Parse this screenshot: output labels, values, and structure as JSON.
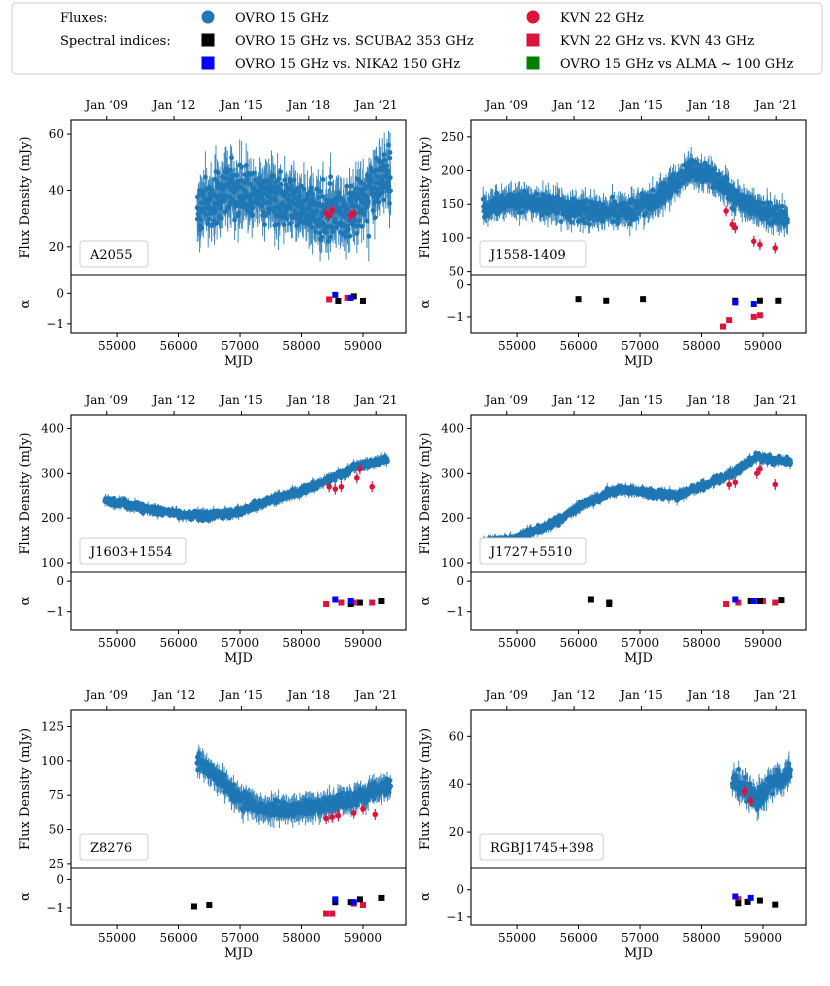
{
  "chart_data": {
    "type": "scatter",
    "x_axis_label": "MJD",
    "y_axis_label_top": "Flux Density (mJy)",
    "y_axis_label_bottom": "α",
    "x_ticks": [
      55000,
      56000,
      57000,
      58000,
      59000
    ],
    "x_tick_labels": [
      "55000",
      "56000",
      "57000",
      "58000",
      "59000"
    ],
    "top_axis_ticks": [
      "Jan ‘09",
      "Jan ‘12",
      "Jan ‘15",
      "Jan ‘18",
      "Jan ‘21"
    ],
    "top_axis_tick_mjd": [
      54832,
      55927,
      57023,
      58119,
      59215
    ],
    "xlim": [
      54250,
      59700
    ],
    "legend": {
      "fluxes_label": "Fluxes:",
      "spectral_label": "Spectral indices:",
      "entries": [
        {
          "name": "OVRO 15 GHz",
          "marker": "circle",
          "color": "#1f77b4"
        },
        {
          "name": "KVN 22 GHz",
          "marker": "circle",
          "color": "#dc143c"
        },
        {
          "name": "OVRO 15 GHz vs. SCUBA2 353 GHz",
          "marker": "square",
          "color": "#000000"
        },
        {
          "name": "KVN 22 GHz vs. KVN 43 GHz",
          "marker": "square",
          "color": "#dc143c"
        },
        {
          "name": "OVRO 15 GHz vs. NIKA2 150 GHz",
          "marker": "square",
          "color": "#0000ff"
        },
        {
          "name": "OVRO 15 GHz vs ALMA ~ 100 GHz",
          "marker": "square",
          "color": "#008000"
        }
      ]
    },
    "panels": [
      {
        "name": "A2055",
        "flux_ylim": [
          10,
          65
        ],
        "flux_ticks": [
          20,
          40,
          60
        ],
        "alpha_ylim": [
          -1.3,
          0.6
        ],
        "alpha_ticks": [
          0,
          -1
        ],
        "ovro_start": 56300,
        "ovro_end": 59450,
        "ovro_scatter": 9,
        "ovro_err": 8,
        "ovro_profile": [
          [
            56300,
            33
          ],
          [
            56800,
            40
          ],
          [
            57400,
            40
          ],
          [
            57800,
            35
          ],
          [
            58300,
            33
          ],
          [
            58800,
            32
          ],
          [
            59100,
            38
          ],
          [
            59450,
            47
          ]
        ],
        "kvn_flux": [
          [
            58400,
            32
          ],
          [
            58450,
            31
          ],
          [
            58500,
            33
          ],
          [
            58800,
            31
          ],
          [
            58850,
            32
          ]
        ],
        "alpha_kvn": [
          [
            58450,
            -0.2
          ],
          [
            58750,
            -0.15
          ]
        ],
        "alpha_scuba": [
          [
            58600,
            -0.25
          ],
          [
            58850,
            -0.1
          ],
          [
            59000,
            -0.25
          ]
        ],
        "alpha_nika": [
          [
            58550,
            -0.05
          ],
          [
            58800,
            -0.15
          ]
        ]
      },
      {
        "name": "J1558-1409",
        "flux_ylim": [
          45,
          275
        ],
        "flux_ticks": [
          50,
          100,
          150,
          200,
          250
        ],
        "alpha_ylim": [
          -1.5,
          0.3
        ],
        "alpha_ticks": [
          0,
          -1
        ],
        "ovro_start": 54450,
        "ovro_end": 59400,
        "ovro_scatter": 14,
        "ovro_err": 18,
        "ovro_profile": [
          [
            54450,
            145
          ],
          [
            55000,
            155
          ],
          [
            55500,
            150
          ],
          [
            56000,
            140
          ],
          [
            56800,
            140
          ],
          [
            57300,
            160
          ],
          [
            57800,
            200
          ],
          [
            58100,
            195
          ],
          [
            58400,
            175
          ],
          [
            58700,
            150
          ],
          [
            59000,
            140
          ],
          [
            59400,
            130
          ]
        ],
        "kvn_flux": [
          [
            58400,
            140
          ],
          [
            58500,
            120
          ],
          [
            58550,
            115
          ],
          [
            58850,
            95
          ],
          [
            58950,
            90
          ],
          [
            59200,
            85
          ]
        ],
        "alpha_kvn": [
          [
            58350,
            -1.3
          ],
          [
            58450,
            -1.1
          ],
          [
            58850,
            -1.0
          ],
          [
            58950,
            -0.95
          ]
        ],
        "alpha_scuba": [
          [
            56000,
            -0.45
          ],
          [
            56450,
            -0.5
          ],
          [
            57050,
            -0.45
          ],
          [
            58550,
            -0.5
          ],
          [
            58950,
            -0.5
          ],
          [
            59250,
            -0.5
          ]
        ],
        "alpha_nika": [
          [
            58550,
            -0.55
          ],
          [
            58850,
            -0.6
          ]
        ]
      },
      {
        "name": "J1603+1554",
        "flux_ylim": [
          80,
          430
        ],
        "flux_ticks": [
          100,
          200,
          300,
          400
        ],
        "alpha_ylim": [
          -1.6,
          0.3
        ],
        "alpha_ticks": [
          0,
          -1
        ],
        "ovro_start": 54800,
        "ovro_end": 59400,
        "ovro_scatter": 8,
        "ovro_err": 10,
        "ovro_profile": [
          [
            54800,
            240
          ],
          [
            55500,
            220
          ],
          [
            56000,
            210
          ],
          [
            56500,
            205
          ],
          [
            57000,
            215
          ],
          [
            57500,
            240
          ],
          [
            58000,
            260
          ],
          [
            58500,
            290
          ],
          [
            59000,
            320
          ],
          [
            59400,
            330
          ]
        ],
        "kvn_flux": [
          [
            58450,
            270
          ],
          [
            58550,
            265
          ],
          [
            58650,
            270
          ],
          [
            58900,
            290
          ],
          [
            58950,
            310
          ],
          [
            59150,
            270
          ]
        ],
        "alpha_kvn": [
          [
            58400,
            -0.75
          ],
          [
            58650,
            -0.7
          ],
          [
            58850,
            -0.7
          ],
          [
            59150,
            -0.7
          ]
        ],
        "alpha_scuba": [
          [
            58800,
            -0.75
          ],
          [
            58950,
            -0.7
          ],
          [
            59300,
            -0.65
          ]
        ],
        "alpha_nika": [
          [
            58550,
            -0.6
          ],
          [
            58800,
            -0.65
          ]
        ]
      },
      {
        "name": "J1727+5510",
        "flux_ylim": [
          80,
          430
        ],
        "flux_ticks": [
          100,
          200,
          300,
          400
        ],
        "alpha_ylim": [
          -1.6,
          0.3
        ],
        "alpha_ticks": [
          0,
          -1
        ],
        "ovro_start": 54450,
        "ovro_end": 59450,
        "ovro_scatter": 8,
        "ovro_err": 10,
        "ovro_profile": [
          [
            54450,
            145
          ],
          [
            55000,
            155
          ],
          [
            55600,
            190
          ],
          [
            56200,
            240
          ],
          [
            56700,
            265
          ],
          [
            57200,
            255
          ],
          [
            57600,
            250
          ],
          [
            58000,
            270
          ],
          [
            58500,
            300
          ],
          [
            58900,
            335
          ],
          [
            59450,
            325
          ]
        ],
        "kvn_flux": [
          [
            58450,
            275
          ],
          [
            58550,
            280
          ],
          [
            58900,
            300
          ],
          [
            58950,
            310
          ],
          [
            59200,
            275
          ]
        ],
        "alpha_kvn": [
          [
            58400,
            -0.75
          ],
          [
            58600,
            -0.7
          ],
          [
            59000,
            -0.65
          ],
          [
            59200,
            -0.7
          ]
        ],
        "alpha_scuba": [
          [
            56200,
            -0.6
          ],
          [
            56500,
            -0.7
          ],
          [
            56500,
            -0.75
          ],
          [
            58800,
            -0.65
          ],
          [
            58950,
            -0.65
          ],
          [
            59300,
            -0.62
          ]
        ],
        "alpha_nika": [
          [
            58550,
            -0.6
          ],
          [
            58850,
            -0.65
          ]
        ]
      },
      {
        "name": "Z8276",
        "flux_ylim": [
          22,
          137
        ],
        "flux_ticks": [
          25,
          50,
          75,
          100,
          125
        ],
        "alpha_ylim": [
          -1.6,
          0.4
        ],
        "alpha_ticks": [
          0,
          -1
        ],
        "ovro_start": 56300,
        "ovro_end": 59450,
        "ovro_scatter": 5,
        "ovro_err": 8,
        "ovro_profile": [
          [
            56300,
            100
          ],
          [
            56600,
            90
          ],
          [
            57000,
            72
          ],
          [
            57400,
            65
          ],
          [
            58000,
            65
          ],
          [
            58400,
            68
          ],
          [
            58800,
            72
          ],
          [
            59200,
            78
          ],
          [
            59450,
            82
          ]
        ],
        "kvn_flux": [
          [
            58400,
            58
          ],
          [
            58500,
            59
          ],
          [
            58600,
            60
          ],
          [
            58850,
            62
          ],
          [
            59000,
            65
          ],
          [
            59200,
            61
          ]
        ],
        "alpha_kvn": [
          [
            58400,
            -1.2
          ],
          [
            58500,
            -1.2
          ],
          [
            58850,
            -0.85
          ],
          [
            59000,
            -0.9
          ]
        ],
        "alpha_scuba": [
          [
            56250,
            -0.95
          ],
          [
            56500,
            -0.9
          ],
          [
            58550,
            -0.8
          ],
          [
            58800,
            -0.8
          ],
          [
            58950,
            -0.7
          ],
          [
            59300,
            -0.65
          ]
        ],
        "alpha_nika": [
          [
            58550,
            -0.7
          ],
          [
            58850,
            -0.8
          ]
        ]
      },
      {
        "name": "RGBJ1745+398",
        "flux_ylim": [
          5,
          71
        ],
        "flux_ticks": [
          20,
          40,
          60
        ],
        "alpha_ylim": [
          -1.3,
          0.8
        ],
        "alpha_ticks": [
          0,
          -1
        ],
        "ovro_start": 58500,
        "ovro_end": 59450,
        "ovro_scatter": 4,
        "ovro_err": 5,
        "ovro_profile": [
          [
            58500,
            42
          ],
          [
            58700,
            38
          ],
          [
            58900,
            33
          ],
          [
            59100,
            40
          ],
          [
            59300,
            42
          ],
          [
            59450,
            46
          ]
        ],
        "kvn_flux": [
          [
            58700,
            37
          ],
          [
            58800,
            33
          ]
        ],
        "alpha_kvn": [
          [
            58600,
            -0.35
          ]
        ],
        "alpha_scuba": [
          [
            58600,
            -0.5
          ],
          [
            58750,
            -0.45
          ],
          [
            58950,
            -0.4
          ],
          [
            59200,
            -0.55
          ]
        ],
        "alpha_nika": [
          [
            58550,
            -0.25
          ],
          [
            58800,
            -0.3
          ]
        ]
      }
    ]
  }
}
